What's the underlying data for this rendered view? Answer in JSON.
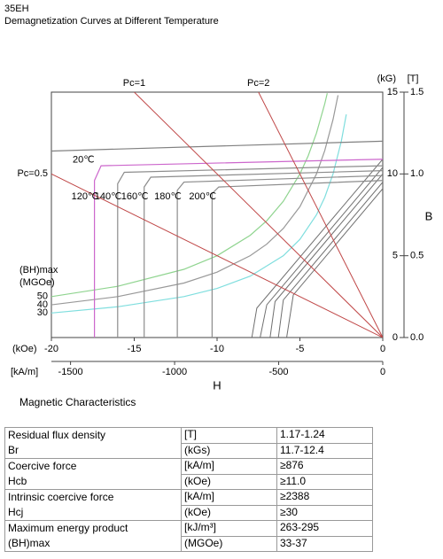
{
  "header": {
    "grade": "35EH",
    "title": "Demagnetization Curves at Different Temperature"
  },
  "chart_data": {
    "type": "line",
    "x_label": "H",
    "y_label": "B",
    "x_unit": "(kOe)",
    "x2_unit": "[kA/m]",
    "y_unit": "(kG)",
    "y2_unit": "[T]",
    "bh_label": [
      "(BH)max",
      "(MGOe)"
    ],
    "xlim": [
      -20,
      0
    ],
    "xticks": [
      -20,
      -15,
      -10,
      -5,
      0
    ],
    "x2lim": [
      -1592,
      0
    ],
    "x2ticks": [
      -1500,
      -1000,
      -500,
      0
    ],
    "ylim": [
      0,
      15
    ],
    "yticks": [
      0,
      5,
      10,
      15
    ],
    "y2lim": [
      0,
      1.5
    ],
    "y2ticks": [
      {
        "value": 0,
        "label": "0.0"
      },
      {
        "value": 0.5,
        "label": "0.5"
      },
      {
        "value": 1.0,
        "label": "1.0"
      },
      {
        "value": 1.5,
        "label": "1.5"
      }
    ],
    "series": [
      {
        "name": "20℃",
        "color": "#808080",
        "x": [
          -20,
          0
        ],
        "values": [
          11.4,
          12.0
        ]
      },
      {
        "name": "120℃",
        "color": "#cc66cc",
        "x": [
          -17.4,
          -17.4,
          -17.0,
          0
        ],
        "values": [
          0,
          9.6,
          10.5,
          10.9
        ]
      },
      {
        "name": "140℃",
        "color": "#8c8c8c",
        "x": [
          -16.0,
          -16.0,
          -15.6,
          0
        ],
        "values": [
          0,
          9.4,
          10.1,
          10.5
        ]
      },
      {
        "name": "160℃",
        "color": "#8c8c8c",
        "x": [
          -14.4,
          -14.4,
          -14.0,
          0
        ],
        "values": [
          0,
          9.2,
          9.8,
          10.2
        ]
      },
      {
        "name": "180℃",
        "color": "#8c8c8c",
        "x": [
          -12.4,
          -12.4,
          -12.0,
          0
        ],
        "values": [
          0,
          9.0,
          9.5,
          9.9
        ]
      },
      {
        "name": "200℃",
        "color": "#8c8c8c",
        "x": [
          -10.3,
          -10.3,
          -9.9,
          0
        ],
        "values": [
          0,
          8.8,
          9.2,
          9.6
        ]
      }
    ],
    "normal_curves": [
      {
        "color": "#707070",
        "x": [
          0,
          -7.6,
          -7.9
        ],
        "values": [
          10.9,
          1.8,
          0
        ]
      },
      {
        "color": "#707070",
        "x": [
          0,
          -7.0,
          -7.4
        ],
        "values": [
          10.4,
          2.0,
          0
        ]
      },
      {
        "color": "#707070",
        "x": [
          0,
          -6.5,
          -6.8
        ],
        "values": [
          10.0,
          2.2,
          0
        ]
      },
      {
        "color": "#707070",
        "x": [
          0,
          -6.0,
          -6.3
        ],
        "values": [
          9.5,
          2.3,
          0
        ]
      },
      {
        "color": "#707070",
        "x": [
          0,
          -5.4,
          -5.8
        ],
        "values": [
          9.1,
          2.6,
          0
        ]
      }
    ],
    "load_lines": [
      {
        "name": "Pc=0.5",
        "color": "#c04848",
        "x": [
          -20,
          0
        ],
        "values": [
          10,
          0
        ]
      },
      {
        "name": "Pc=1",
        "color": "#c04848",
        "x": [
          -15,
          0
        ],
        "values": [
          15,
          0
        ]
      },
      {
        "name": "Pc=2",
        "color": "#c04848",
        "x": [
          -7.5,
          0
        ],
        "values": [
          15,
          0
        ]
      }
    ],
    "energy_curves": [
      {
        "name": "50",
        "color": "#8fd48f",
        "x": [
          -20,
          -16,
          -12,
          -10,
          -8,
          -7,
          -6,
          -5,
          -4.5,
          -4,
          -3.5,
          -3.35
        ],
        "values": [
          2.5,
          3.13,
          4.17,
          5,
          6.25,
          7.14,
          8.33,
          10,
          11.11,
          12.5,
          14.29,
          14.93
        ]
      },
      {
        "name": "40",
        "color": "#999999",
        "x": [
          -20,
          -16,
          -12,
          -10,
          -8,
          -7,
          -6,
          -5,
          -4,
          -3.5,
          -3,
          -2.7
        ],
        "values": [
          2,
          2.5,
          3.33,
          4,
          5,
          5.71,
          6.67,
          8,
          10,
          11.43,
          13.33,
          14.81
        ]
      },
      {
        "name": "30",
        "color": "#7fdede",
        "x": [
          -20,
          -16,
          -12,
          -10,
          -8,
          -6,
          -5,
          -4,
          -3.5,
          -3,
          -2.5,
          -2.2
        ],
        "values": [
          1.5,
          1.88,
          2.5,
          3,
          3.75,
          5,
          6,
          7.5,
          8.57,
          10,
          12,
          13.64
        ]
      }
    ]
  },
  "table": {
    "title": "Magnetic Characteristics",
    "rows": [
      {
        "property": [
          "Residual flux density",
          "Br"
        ],
        "units": [
          "[T]",
          "(kGs)"
        ],
        "values": [
          "1.17-1.24",
          "11.7-12.4"
        ]
      },
      {
        "property": [
          "Coercive force",
          "Hcb"
        ],
        "units": [
          "[kA/m]",
          "(kOe)"
        ],
        "values": [
          "≥876",
          "≥11.0"
        ]
      },
      {
        "property": [
          "Intrinsic coercive force",
          "Hcj"
        ],
        "units": [
          "[kA/m]",
          "(kOe)"
        ],
        "values": [
          "≥2388",
          "≥30"
        ]
      },
      {
        "property": [
          "Maximum energy product",
          "(BH)max"
        ],
        "units": [
          "[kJ/m³]",
          "(MGOe)"
        ],
        "values": [
          "263-295",
          "33-37"
        ]
      }
    ]
  }
}
